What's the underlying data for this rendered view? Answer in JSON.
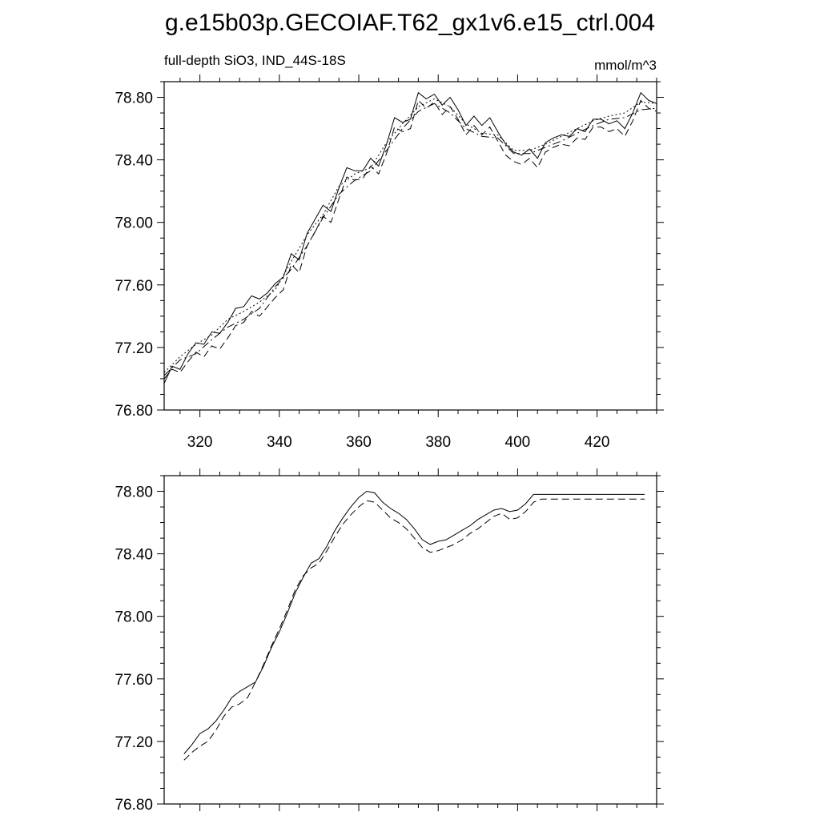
{
  "figure": {
    "title": "g.e15b03p.GECOIAF.T62_gx1v6.e15_ctrl.004",
    "subtitle_left": "full-depth SiO3, IND_44S-18S",
    "subtitle_right": "mmol/m^3"
  },
  "chart_data": [
    {
      "type": "line",
      "panel": "top",
      "xlim": [
        311,
        435
      ],
      "ylim": [
        76.8,
        78.9
      ],
      "x_ticks": [
        320,
        340,
        360,
        380,
        400,
        420
      ],
      "x_tick_labels": [
        "320",
        "340",
        "360",
        "380",
        "400",
        "420"
      ],
      "y_ticks": [
        76.8,
        77.2,
        77.6,
        78.0,
        78.4,
        78.8
      ],
      "y_tick_labels": [
        "76.80",
        "77.20",
        "77.60",
        "78.00",
        "78.40",
        "78.80"
      ],
      "grid": false,
      "series": [
        {
          "style": "solid",
          "x": [
            311,
            313,
            315,
            317,
            319,
            321,
            323,
            325,
            327,
            329,
            331,
            333,
            335,
            337,
            339,
            341,
            343,
            345,
            347,
            349,
            351,
            353,
            355,
            357,
            359,
            361,
            363,
            365,
            367,
            369,
            371,
            373,
            375,
            377,
            379,
            381,
            383,
            385,
            387,
            389,
            391,
            393,
            395,
            397,
            399,
            401,
            403,
            405,
            407,
            409,
            411,
            413,
            415,
            417,
            419,
            421,
            423,
            425,
            427,
            429,
            431,
            433,
            435
          ],
          "y": [
            76.97,
            77.08,
            77.06,
            77.16,
            77.23,
            77.22,
            77.3,
            77.29,
            77.36,
            77.45,
            77.46,
            77.53,
            77.51,
            77.55,
            77.61,
            77.65,
            77.8,
            77.76,
            77.93,
            78.02,
            78.11,
            78.07,
            78.22,
            78.35,
            78.33,
            78.33,
            78.41,
            78.36,
            78.5,
            78.67,
            78.64,
            78.66,
            78.83,
            78.79,
            78.82,
            78.75,
            78.8,
            78.72,
            78.62,
            78.68,
            78.62,
            78.67,
            78.58,
            78.5,
            78.45,
            78.43,
            78.47,
            78.41,
            78.51,
            78.54,
            78.56,
            78.55,
            78.6,
            78.58,
            78.66,
            78.66,
            78.63,
            78.65,
            78.6,
            78.7,
            78.83,
            78.78,
            78.76
          ]
        },
        {
          "style": "dashed",
          "x": [
            311,
            313,
            315,
            317,
            319,
            321,
            323,
            325,
            327,
            329,
            331,
            333,
            335,
            337,
            339,
            341,
            343,
            345,
            347,
            349,
            351,
            353,
            355,
            357,
            359,
            361,
            363,
            365,
            367,
            369,
            371,
            373,
            375,
            377,
            379,
            381,
            383,
            385,
            387,
            389,
            391,
            393,
            395,
            397,
            399,
            401,
            403,
            405,
            407,
            409,
            411,
            413,
            415,
            417,
            419,
            421,
            423,
            425,
            427,
            429,
            431,
            433,
            435
          ],
          "y": [
            77.0,
            77.06,
            77.04,
            77.11,
            77.17,
            77.14,
            77.21,
            77.19,
            77.26,
            77.34,
            77.36,
            77.43,
            77.4,
            77.46,
            77.52,
            77.57,
            77.73,
            77.68,
            77.85,
            77.94,
            78.04,
            78.0,
            78.15,
            78.29,
            78.27,
            78.28,
            78.36,
            78.31,
            78.44,
            78.61,
            78.58,
            78.6,
            78.78,
            78.73,
            78.77,
            78.69,
            78.74,
            78.66,
            78.56,
            78.62,
            78.56,
            78.61,
            78.52,
            78.43,
            78.39,
            78.37,
            78.41,
            78.35,
            78.45,
            78.48,
            78.5,
            78.49,
            78.54,
            78.53,
            78.61,
            78.61,
            78.58,
            78.6,
            78.55,
            78.65,
            78.78,
            78.73,
            78.71
          ]
        },
        {
          "style": "dashdot",
          "x": [
            311,
            315,
            319,
            323,
            327,
            331,
            335,
            339,
            343,
            347,
            351,
            355,
            359,
            363,
            367,
            371,
            375,
            379,
            383,
            387,
            391,
            395,
            399,
            403,
            407,
            411,
            415,
            419,
            423,
            427,
            431,
            435
          ],
          "y": [
            77.02,
            77.12,
            77.16,
            77.25,
            77.33,
            77.38,
            77.45,
            77.59,
            77.7,
            77.85,
            78.03,
            78.18,
            78.27,
            78.33,
            78.46,
            78.6,
            78.71,
            78.76,
            78.7,
            78.6,
            78.55,
            78.54,
            78.44,
            78.44,
            78.48,
            78.52,
            78.57,
            78.62,
            78.66,
            78.67,
            78.72,
            78.73
          ]
        },
        {
          "style": "dotted",
          "x": [
            311,
            315,
            319,
            323,
            327,
            331,
            335,
            339,
            343,
            347,
            351,
            355,
            359,
            363,
            367,
            371,
            375,
            379,
            383,
            387,
            391,
            395,
            399,
            403,
            407,
            411,
            415,
            419,
            423,
            427,
            431,
            435
          ],
          "y": [
            77.04,
            77.14,
            77.22,
            77.28,
            77.38,
            77.43,
            77.49,
            77.57,
            77.75,
            77.92,
            78.05,
            78.23,
            78.31,
            78.35,
            78.51,
            78.63,
            78.74,
            78.79,
            78.74,
            78.63,
            78.57,
            78.56,
            78.46,
            78.46,
            78.5,
            78.55,
            78.6,
            78.65,
            78.68,
            78.7,
            78.77,
            78.76
          ]
        }
      ]
    },
    {
      "type": "line",
      "panel": "bottom",
      "xlim": [
        311,
        435
      ],
      "ylim": [
        76.8,
        78.9
      ],
      "x_ticks": [
        320,
        340,
        360,
        380,
        400,
        420
      ],
      "y_ticks": [
        76.8,
        77.2,
        77.6,
        78.0,
        78.4,
        78.8
      ],
      "y_tick_labels": [
        "76.80",
        "77.20",
        "77.60",
        "78.00",
        "78.40",
        "78.80"
      ],
      "grid": false,
      "series": [
        {
          "style": "solid",
          "x": [
            316,
            318,
            320,
            322,
            324,
            326,
            328,
            330,
            332,
            334,
            336,
            338,
            340,
            342,
            344,
            346,
            348,
            350,
            352,
            354,
            356,
            358,
            360,
            362,
            364,
            366,
            368,
            370,
            372,
            374,
            376,
            378,
            380,
            382,
            384,
            386,
            388,
            390,
            392,
            394,
            396,
            398,
            400,
            402,
            404,
            406,
            408,
            410,
            412,
            414,
            416,
            418,
            420,
            422,
            424,
            426,
            428,
            430,
            432
          ],
          "y": [
            77.12,
            77.18,
            77.25,
            77.28,
            77.33,
            77.4,
            77.48,
            77.52,
            77.55,
            77.58,
            77.68,
            77.8,
            77.9,
            78.02,
            78.15,
            78.25,
            78.34,
            78.37,
            78.45,
            78.55,
            78.63,
            78.7,
            78.76,
            78.8,
            78.79,
            78.73,
            78.69,
            78.66,
            78.62,
            78.56,
            78.49,
            78.46,
            78.48,
            78.49,
            78.52,
            78.55,
            78.58,
            78.62,
            78.65,
            78.68,
            78.69,
            78.67,
            78.68,
            78.72,
            78.78,
            78.78,
            78.78,
            78.78,
            78.78,
            78.78,
            78.78,
            78.78,
            78.78,
            78.78,
            78.78,
            78.78,
            78.78,
            78.78,
            78.78
          ]
        },
        {
          "style": "dashed",
          "x": [
            316,
            318,
            320,
            322,
            324,
            326,
            328,
            330,
            332,
            334,
            336,
            338,
            340,
            342,
            344,
            346,
            348,
            350,
            352,
            354,
            356,
            358,
            360,
            362,
            364,
            366,
            368,
            370,
            372,
            374,
            376,
            378,
            380,
            382,
            384,
            386,
            388,
            390,
            392,
            394,
            396,
            398,
            400,
            402,
            404,
            406,
            408,
            410,
            412,
            414,
            416,
            418,
            420,
            422,
            424,
            426,
            428,
            430,
            432
          ],
          "y": [
            77.08,
            77.13,
            77.17,
            77.2,
            77.27,
            77.36,
            77.42,
            77.44,
            77.48,
            77.58,
            77.69,
            77.81,
            77.92,
            78.04,
            78.17,
            78.26,
            78.31,
            78.34,
            78.42,
            78.51,
            78.59,
            78.65,
            78.7,
            78.74,
            78.73,
            78.68,
            78.63,
            78.6,
            78.56,
            78.5,
            78.44,
            78.41,
            78.42,
            78.44,
            78.46,
            78.49,
            78.53,
            78.56,
            78.6,
            78.64,
            78.66,
            78.62,
            78.63,
            78.67,
            78.73,
            78.75,
            78.75,
            78.75,
            78.75,
            78.75,
            78.75,
            78.75,
            78.75,
            78.75,
            78.75,
            78.75,
            78.75,
            78.75,
            78.75
          ]
        }
      ]
    }
  ]
}
